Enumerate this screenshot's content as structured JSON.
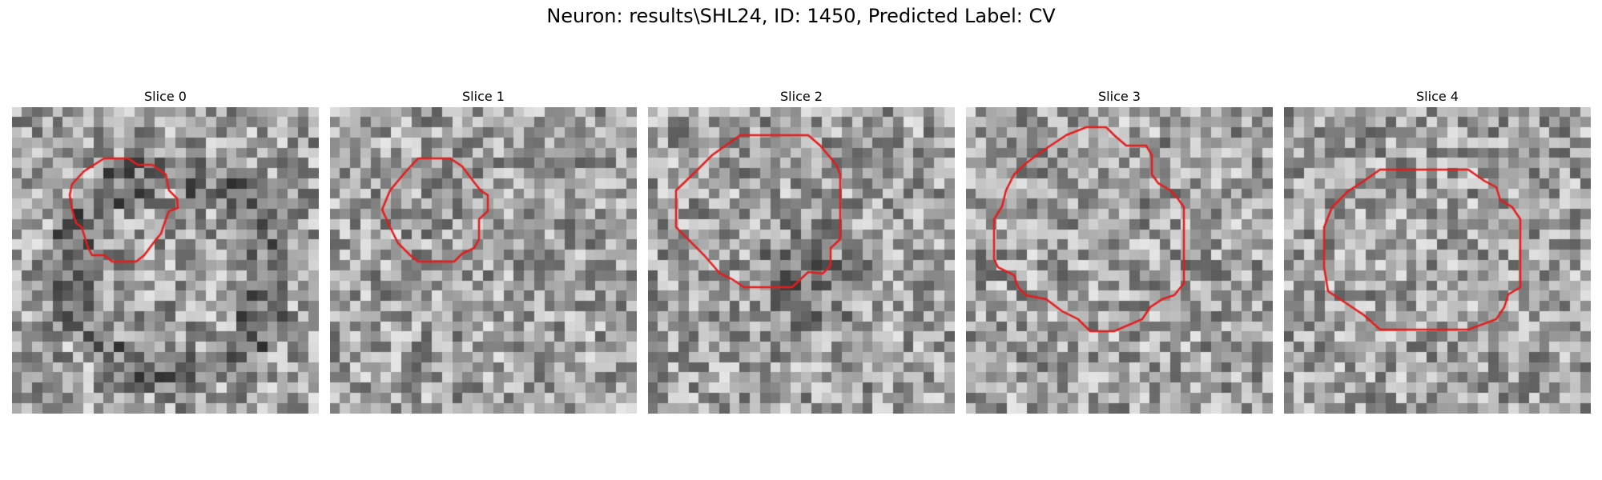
{
  "figure": {
    "title": "Neuron: results\\SHL24, ID: 1450, Predicted Label: CV"
  },
  "outline_color": "#e61c1c",
  "slices": [
    {
      "label": "Slice 0",
      "seed": 11,
      "dark_center": false
    },
    {
      "label": "Slice 1",
      "seed": 23,
      "dark_center": false
    },
    {
      "label": "Slice 2",
      "seed": 37,
      "dark_center": true
    },
    {
      "label": "Slice 3",
      "seed": 41,
      "dark_center": false
    },
    {
      "label": "Slice 4",
      "seed": 59,
      "dark_center": false
    }
  ]
}
